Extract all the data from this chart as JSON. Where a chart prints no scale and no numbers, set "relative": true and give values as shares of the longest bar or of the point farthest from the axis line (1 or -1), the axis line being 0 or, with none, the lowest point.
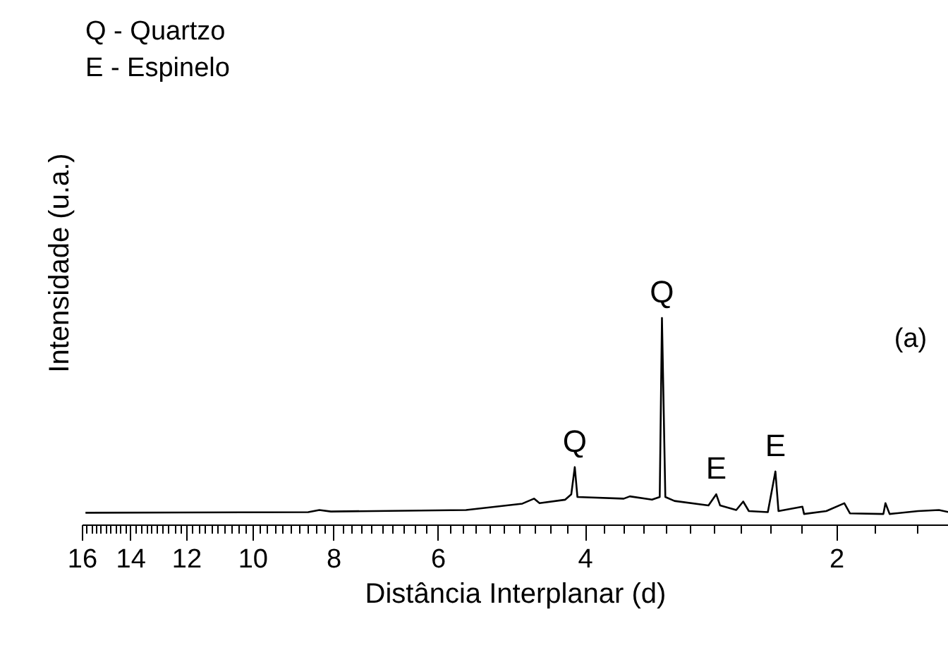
{
  "chart_data": {
    "type": "line",
    "xlabel": "Distância Interplanar (d)",
    "ylabel": "Intensidade (u.a.)",
    "relative": true,
    "log": "x",
    "grid": false,
    "xlim": [
      16,
      1.47
    ],
    "xticks": [
      16,
      14,
      12,
      10,
      8,
      6,
      4,
      2
    ],
    "x": [
      15.87,
      8.59,
      8.33,
      8.07,
      5.56,
      4.76,
      4.61,
      4.54,
      4.23,
      4.16,
      4.12,
      4.09,
      3.6,
      3.54,
      3.33,
      3.26,
      3.24,
      3.21,
      3.13,
      2.85,
      2.79,
      2.76,
      2.64,
      2.59,
      2.55,
      2.42,
      2.37,
      2.35,
      2.2,
      2.19,
      2.06,
      1.96,
      1.93,
      1.76,
      1.75,
      1.73,
      1.6,
      1.51,
      1.47
    ],
    "series": [
      {
        "color": "#000000",
        "values": [
          0.06,
          0.063,
          0.073,
          0.066,
          0.073,
          0.104,
          0.128,
          0.106,
          0.123,
          0.149,
          0.28,
          0.136,
          0.128,
          0.139,
          0.123,
          0.136,
          1,
          0.136,
          0.117,
          0.095,
          0.149,
          0.095,
          0.073,
          0.114,
          0.068,
          0.063,
          0.259,
          0.068,
          0.089,
          0.054,
          0.068,
          0.106,
          0.057,
          0.054,
          0.106,
          0.054,
          0.068,
          0.073,
          0.063
        ]
      }
    ],
    "annotations": [
      "Q - Quartzo",
      "E - Espinelo",
      "(a)",
      {
        "text": "Q",
        "x": 4.12,
        "y": 0.28
      },
      {
        "text": "Q",
        "x": 3.24,
        "y": 1
      },
      {
        "text": "E",
        "x": 2.79,
        "y": 0.149
      },
      {
        "text": "E",
        "x": 2.37,
        "y": 0.259
      }
    ]
  }
}
